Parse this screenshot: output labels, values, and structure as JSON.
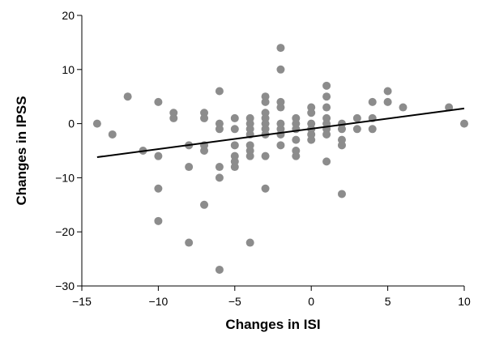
{
  "chart_data": {
    "type": "scatter",
    "title": "",
    "xlabel": "Changes in ISI",
    "ylabel": "Changes in IPSS",
    "xlim": [
      -15,
      10
    ],
    "ylim": [
      -30,
      20
    ],
    "xticks": [
      -15,
      -10,
      -5,
      0,
      5,
      10
    ],
    "yticks": [
      -30,
      -20,
      -10,
      0,
      10,
      20
    ],
    "xtick_labels": [
      "−15",
      "−10",
      "−5",
      "0",
      "5",
      "10"
    ],
    "ytick_labels": [
      "−30",
      "−20",
      "−10",
      "0",
      "10",
      "20"
    ],
    "grid": false,
    "legend": "none",
    "point_color": "#8c8c8c",
    "line_color": "#000000",
    "series": [
      {
        "points": [
          [
            -14,
            0
          ],
          [
            -13,
            -2
          ],
          [
            -12,
            5
          ],
          [
            -11,
            -5
          ],
          [
            -10,
            4
          ],
          [
            -10,
            -6
          ],
          [
            -10,
            -12
          ],
          [
            -10,
            -18
          ],
          [
            -9,
            2
          ],
          [
            -9,
            1
          ],
          [
            -8,
            -4
          ],
          [
            -8,
            -8
          ],
          [
            -8,
            -22
          ],
          [
            -7,
            2
          ],
          [
            -7,
            1
          ],
          [
            -7,
            -4
          ],
          [
            -7,
            -5
          ],
          [
            -7,
            -15
          ],
          [
            -6,
            6
          ],
          [
            -6,
            0
          ],
          [
            -6,
            -1
          ],
          [
            -6,
            -8
          ],
          [
            -6,
            -10
          ],
          [
            -6,
            -27
          ],
          [
            -5,
            1
          ],
          [
            -5,
            -1
          ],
          [
            -5,
            -4
          ],
          [
            -5,
            -6
          ],
          [
            -5,
            -7
          ],
          [
            -5,
            -8
          ],
          [
            -4,
            1
          ],
          [
            -4,
            0
          ],
          [
            -4,
            -1
          ],
          [
            -4,
            -2
          ],
          [
            -4,
            -4
          ],
          [
            -4,
            -5
          ],
          [
            -4,
            -6
          ],
          [
            -4,
            -22
          ],
          [
            -3,
            5
          ],
          [
            -3,
            4
          ],
          [
            -3,
            2
          ],
          [
            -3,
            1
          ],
          [
            -3,
            0
          ],
          [
            -3,
            -1
          ],
          [
            -3,
            -2
          ],
          [
            -3,
            -6
          ],
          [
            -3,
            -12
          ],
          [
            -2,
            14
          ],
          [
            -2,
            10
          ],
          [
            -2,
            4
          ],
          [
            -2,
            3
          ],
          [
            -2,
            0
          ],
          [
            -2,
            -1
          ],
          [
            -2,
            -2
          ],
          [
            -2,
            -4
          ],
          [
            -1,
            1
          ],
          [
            -1,
            0
          ],
          [
            -1,
            -1
          ],
          [
            -1,
            -3
          ],
          [
            -1,
            -5
          ],
          [
            -1,
            -6
          ],
          [
            0,
            3
          ],
          [
            0,
            2
          ],
          [
            0,
            0
          ],
          [
            0,
            -1
          ],
          [
            0,
            -2
          ],
          [
            0,
            -3
          ],
          [
            1,
            7
          ],
          [
            1,
            5
          ],
          [
            1,
            3
          ],
          [
            1,
            1
          ],
          [
            1,
            0
          ],
          [
            1,
            -1
          ],
          [
            1,
            -2
          ],
          [
            1,
            -7
          ],
          [
            2,
            0
          ],
          [
            2,
            -1
          ],
          [
            2,
            -3
          ],
          [
            2,
            -4
          ],
          [
            2,
            -13
          ],
          [
            3,
            1
          ],
          [
            3,
            -1
          ],
          [
            4,
            4
          ],
          [
            4,
            1
          ],
          [
            4,
            -1
          ],
          [
            5,
            6
          ],
          [
            5,
            4
          ],
          [
            6,
            3
          ],
          [
            9,
            3
          ],
          [
            10,
            0
          ]
        ]
      }
    ],
    "trendline": {
      "x": [
        -14,
        10
      ],
      "y": [
        -6.2,
        2.8
      ]
    }
  }
}
